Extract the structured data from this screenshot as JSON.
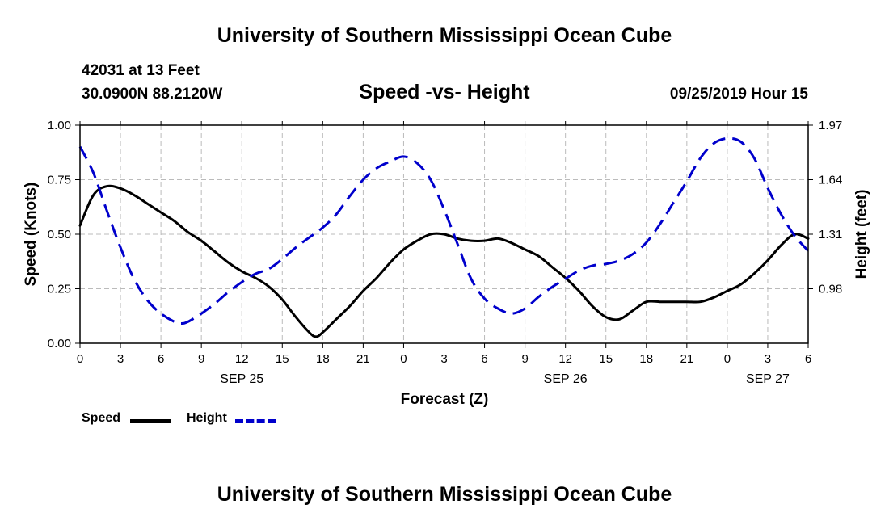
{
  "header": {
    "title": "University of Southern Mississippi Ocean Cube",
    "station": "42031 at 13 Feet",
    "coords": "30.0900N 88.2120W",
    "chart_title": "Speed -vs- Height",
    "datetime": "09/25/2019 Hour 15"
  },
  "footer": {
    "title": "University of Southern Mississippi Ocean Cube"
  },
  "legend": {
    "speed": "Speed",
    "height": "Height"
  },
  "colors": {
    "speed": "#000000",
    "height": "#0000cc",
    "grid": "#bbbbbb"
  },
  "chart_data": {
    "type": "line",
    "title": "Speed -vs- Height",
    "xlabel": "Forecast (Z)",
    "ylabel": "Speed (Knots)",
    "y2label": "Height (feet)",
    "xlim": [
      0,
      54
    ],
    "ylim": [
      0,
      1.0
    ],
    "y2lim": [
      0.65,
      1.97
    ],
    "grid": true,
    "legend_position": "bottom-left",
    "x_ticks": [
      0,
      3,
      6,
      9,
      12,
      15,
      18,
      21,
      24,
      27,
      30,
      33,
      36,
      39,
      42,
      45,
      48,
      51,
      54
    ],
    "x_tick_labels": [
      "0",
      "3",
      "6",
      "9",
      "12",
      "15",
      "18",
      "21",
      "0",
      "3",
      "6",
      "9",
      "12",
      "15",
      "18",
      "21",
      "0",
      "3",
      "6"
    ],
    "date_labels": [
      {
        "x": 12,
        "label": "SEP 25"
      },
      {
        "x": 36,
        "label": "SEP 26"
      },
      {
        "x": 51,
        "label": "SEP 27"
      }
    ],
    "y_ticks": [
      0,
      0.25,
      0.5,
      0.75,
      1.0
    ],
    "y_tick_labels": [
      "0.00",
      "0.25",
      "0.50",
      "0.75",
      "1.00"
    ],
    "y2_ticks": [
      0.98,
      1.31,
      1.64,
      1.97
    ],
    "y2_tick_labels": [
      "0.98",
      "1.31",
      "1.64",
      "1.97"
    ],
    "series": [
      {
        "name": "Speed",
        "axis": "left",
        "style": "solid",
        "x": [
          0,
          1,
          2,
          3,
          4,
          5,
          6,
          7,
          8,
          9,
          10,
          11,
          12,
          13,
          14,
          15,
          16,
          17,
          17.5,
          18,
          19,
          20,
          21,
          22,
          23,
          24,
          25,
          26,
          27,
          28,
          29,
          30,
          31,
          32,
          33,
          34,
          35,
          36,
          37,
          38,
          39,
          40,
          41,
          42,
          43,
          44,
          45,
          46,
          47,
          48,
          49,
          50,
          51,
          52,
          53,
          54
        ],
        "values": [
          0.54,
          0.68,
          0.72,
          0.71,
          0.68,
          0.64,
          0.6,
          0.56,
          0.51,
          0.47,
          0.42,
          0.37,
          0.33,
          0.3,
          0.26,
          0.2,
          0.12,
          0.05,
          0.03,
          0.05,
          0.11,
          0.17,
          0.24,
          0.3,
          0.37,
          0.43,
          0.47,
          0.5,
          0.5,
          0.48,
          0.47,
          0.47,
          0.48,
          0.46,
          0.43,
          0.4,
          0.35,
          0.3,
          0.24,
          0.17,
          0.12,
          0.11,
          0.15,
          0.19,
          0.19,
          0.19,
          0.19,
          0.19,
          0.21,
          0.24,
          0.27,
          0.32,
          0.38,
          0.45,
          0.5,
          0.48
        ]
      },
      {
        "name": "Height",
        "axis": "right",
        "style": "dashed",
        "x": [
          0,
          1,
          2,
          3,
          4,
          5,
          6,
          7,
          7.5,
          8,
          9,
          10,
          11,
          12,
          13,
          14,
          15,
          16,
          17,
          18,
          19,
          20,
          21,
          22,
          23,
          24,
          25,
          26,
          27,
          28,
          29,
          30,
          31,
          32,
          33,
          34,
          35,
          36,
          37,
          38,
          39,
          40,
          41,
          42,
          43,
          44,
          45,
          46,
          47,
          48,
          49,
          50,
          51,
          52,
          53,
          54
        ],
        "values": [
          1.84,
          1.68,
          1.45,
          1.23,
          1.04,
          0.91,
          0.83,
          0.78,
          0.77,
          0.78,
          0.83,
          0.89,
          0.96,
          1.02,
          1.07,
          1.1,
          1.16,
          1.23,
          1.29,
          1.35,
          1.43,
          1.54,
          1.64,
          1.71,
          1.75,
          1.78,
          1.74,
          1.64,
          1.46,
          1.25,
          1.04,
          0.92,
          0.86,
          0.83,
          0.86,
          0.93,
          0.99,
          1.04,
          1.09,
          1.12,
          1.13,
          1.15,
          1.19,
          1.26,
          1.37,
          1.5,
          1.63,
          1.77,
          1.86,
          1.89,
          1.87,
          1.77,
          1.59,
          1.43,
          1.3,
          1.21
        ]
      }
    ]
  }
}
